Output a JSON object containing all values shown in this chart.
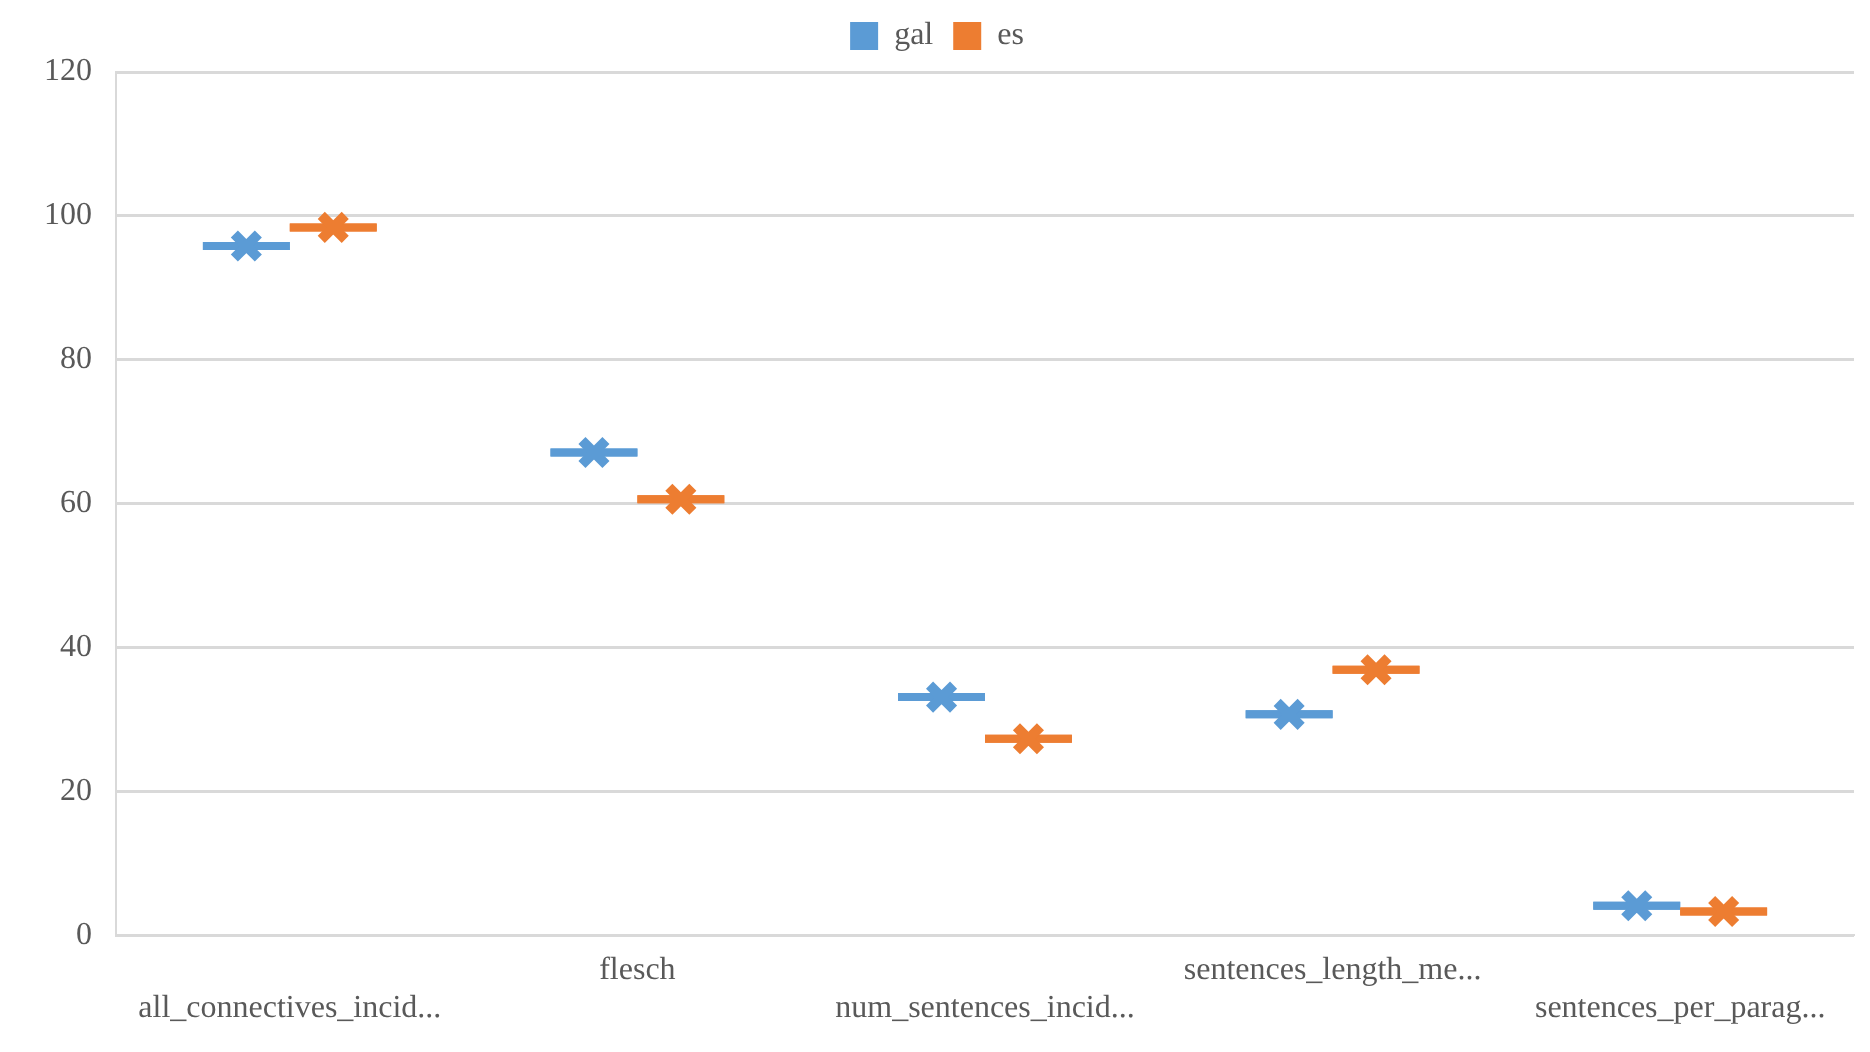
{
  "chart_data": {
    "type": "box",
    "categories": [
      "all_connectives_incid...",
      "flesch",
      "num_sentences_incid...",
      "sentences_length_me...",
      "sentences_per_parag..."
    ],
    "series": [
      {
        "name": "gal",
        "color": "#5b9bd5",
        "boxes": [
          {
            "low": 95.8,
            "q1": 95.8,
            "median": 95.8,
            "q3": 95.8,
            "high": 95.8,
            "mean": 95.8
          },
          {
            "low": 67.1,
            "q1": 67.1,
            "median": 67.1,
            "q3": 67.1,
            "high": 67.1,
            "mean": 67.1
          },
          {
            "low": 33.1,
            "q1": 33.1,
            "median": 33.1,
            "q3": 33.1,
            "high": 33.1,
            "mean": 33.1
          },
          {
            "low": 30.7,
            "q1": 30.7,
            "median": 30.7,
            "q3": 30.7,
            "high": 30.7,
            "mean": 30.7
          },
          {
            "low": 4.1,
            "q1": 4.1,
            "median": 4.1,
            "q3": 4.1,
            "high": 4.1,
            "mean": 4.1
          }
        ]
      },
      {
        "name": "es",
        "color": "#ed7d31",
        "boxes": [
          {
            "low": 98.4,
            "q1": 98.4,
            "median": 98.4,
            "q3": 98.4,
            "high": 98.4,
            "mean": 98.4
          },
          {
            "low": 60.6,
            "q1": 60.6,
            "median": 60.6,
            "q3": 60.6,
            "high": 60.6,
            "mean": 60.6
          },
          {
            "low": 27.3,
            "q1": 27.3,
            "median": 27.3,
            "q3": 27.3,
            "high": 27.3,
            "mean": 27.3
          },
          {
            "low": 36.9,
            "q1": 36.9,
            "median": 36.9,
            "q3": 36.9,
            "high": 36.9,
            "mean": 36.9
          },
          {
            "low": 3.3,
            "q1": 3.3,
            "median": 3.3,
            "q3": 3.3,
            "high": 3.3,
            "mean": 3.3
          }
        ]
      }
    ],
    "ylim": [
      0,
      120
    ],
    "yticks": [
      0,
      20,
      40,
      60,
      80,
      100,
      120
    ],
    "grid": "y",
    "legend": "top"
  }
}
